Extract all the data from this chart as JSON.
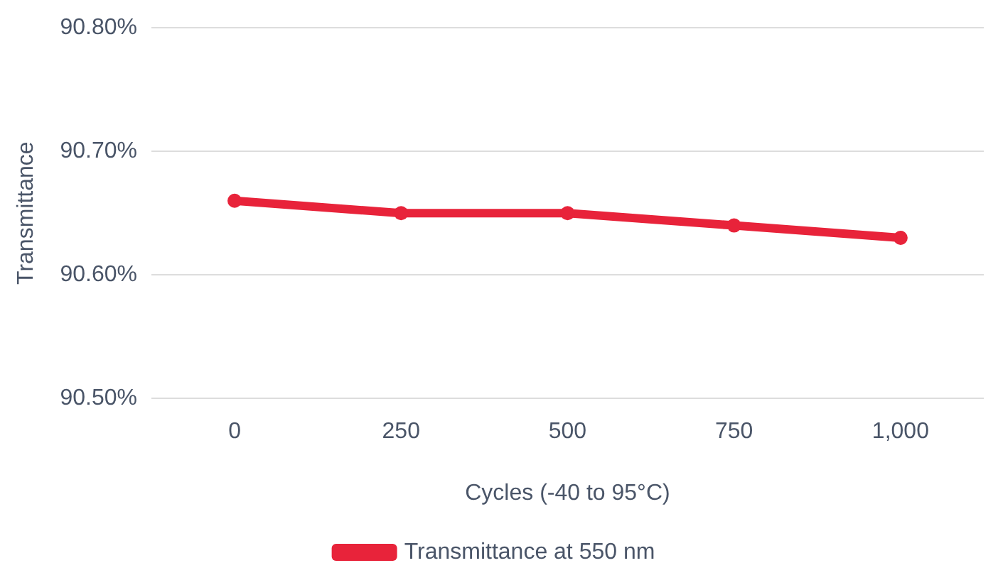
{
  "chart_data": {
    "type": "line",
    "xlabel": "Cycles (-40 to 95°C)",
    "ylabel": "Transmittance",
    "categories": [
      "0",
      "250",
      "500",
      "750",
      "1,000"
    ],
    "series": [
      {
        "name": "Transmittance at 550 nm",
        "color": "#e8233a",
        "values": [
          90.66,
          90.65,
          90.65,
          90.64,
          90.63
        ]
      }
    ],
    "ylim": [
      90.5,
      90.8
    ],
    "yticks": [
      {
        "value": 90.5,
        "label": "90.50%"
      },
      {
        "value": 90.6,
        "label": "90.60%"
      },
      {
        "value": 90.7,
        "label": "90.70%"
      },
      {
        "value": 90.8,
        "label": "90.80%"
      }
    ],
    "grid": "y",
    "legend": "bottom",
    "marker": "circle",
    "line_style": "solid"
  }
}
